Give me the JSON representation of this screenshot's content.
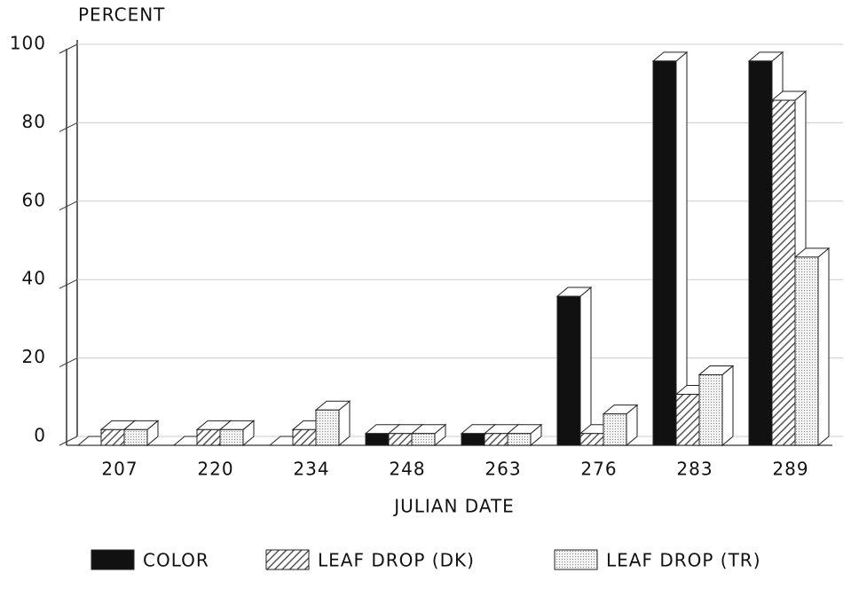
{
  "chart_data": {
    "type": "bar3d",
    "y_label": "PERCENT",
    "x_label": "JULIAN DATE",
    "categories": [
      "207",
      "220",
      "234",
      "248",
      "263",
      "276",
      "283",
      "289"
    ],
    "series": [
      {
        "name": "COLOR",
        "color": "#111111",
        "pattern": "solid",
        "values": [
          0,
          0,
          0,
          3,
          3,
          38,
          98,
          98
        ]
      },
      {
        "name": "LEAF DROP (DK)",
        "color": "#555555",
        "pattern": "hatch",
        "values": [
          4,
          4,
          4,
          3,
          3,
          3,
          13,
          88
        ]
      },
      {
        "name": "LEAF DROP (TR)",
        "color": "#999999",
        "pattern": "dots",
        "values": [
          4,
          4,
          9,
          3,
          3,
          8,
          18,
          48
        ]
      }
    ],
    "ylim": [
      0,
      100
    ],
    "yticks": [
      0,
      20,
      40,
      60,
      80,
      100
    ],
    "grid": true,
    "legend": "bottom"
  }
}
